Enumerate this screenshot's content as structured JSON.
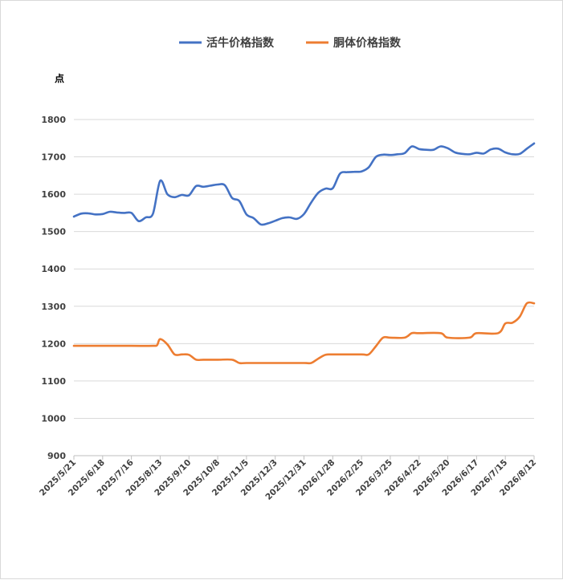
{
  "chart_data": {
    "type": "line",
    "y_unit": "点",
    "ylim": [
      900,
      1800
    ],
    "y_ticks": [
      900,
      1000,
      1100,
      1200,
      1300,
      1400,
      1500,
      1600,
      1700,
      1800
    ],
    "grid": true,
    "legend_position": "top-center",
    "x_start": "2025/5/21",
    "x_end": "2026/8/12",
    "x_ticks": [
      "2025/5/21",
      "2025/6/18",
      "2025/7/16",
      "2025/8/13",
      "2025/9/10",
      "2025/10/8",
      "2025/11/5",
      "2025/12/3",
      "2025/12/31",
      "2026/1/28",
      "2026/2/25",
      "2026/3/25",
      "2026/4/22",
      "2026/5/20",
      "2026/6/17",
      "2026/7/15",
      "2026/8/12"
    ],
    "series": [
      {
        "name": "活牛价格指数",
        "color": "#4472c4",
        "points": [
          [
            "2025/5/21",
            1540
          ],
          [
            "2025/5/28",
            1548
          ],
          [
            "2025/6/4",
            1549
          ],
          [
            "2025/6/11",
            1546
          ],
          [
            "2025/6/18",
            1547
          ],
          [
            "2025/6/25",
            1553
          ],
          [
            "2025/7/2",
            1551
          ],
          [
            "2025/7/9",
            1550
          ],
          [
            "2025/7/16",
            1550
          ],
          [
            "2025/7/23",
            1528
          ],
          [
            "2025/7/30",
            1538
          ],
          [
            "2025/8/6",
            1548
          ],
          [
            "2025/8/13",
            1636
          ],
          [
            "2025/8/20",
            1600
          ],
          [
            "2025/8/27",
            1592
          ],
          [
            "2025/9/3",
            1598
          ],
          [
            "2025/9/10",
            1597
          ],
          [
            "2025/9/17",
            1622
          ],
          [
            "2025/9/24",
            1620
          ],
          [
            "2025/10/1",
            1623
          ],
          [
            "2025/10/8",
            1626
          ],
          [
            "2025/10/15",
            1624
          ],
          [
            "2025/10/22",
            1590
          ],
          [
            "2025/10/29",
            1582
          ],
          [
            "2025/11/5",
            1546
          ],
          [
            "2025/11/12",
            1536
          ],
          [
            "2025/11/19",
            1519
          ],
          [
            "2025/11/26",
            1522
          ],
          [
            "2025/12/3",
            1529
          ],
          [
            "2025/12/10",
            1536
          ],
          [
            "2025/12/17",
            1538
          ],
          [
            "2025/12/24",
            1534
          ],
          [
            "2025/12/31",
            1547
          ],
          [
            "2026/1/7",
            1578
          ],
          [
            "2026/1/14",
            1604
          ],
          [
            "2026/1/21",
            1615
          ],
          [
            "2026/1/28",
            1616
          ],
          [
            "2026/2/4",
            1655
          ],
          [
            "2026/2/11",
            1659
          ],
          [
            "2026/2/18",
            1660
          ],
          [
            "2026/2/25",
            1661
          ],
          [
            "2026/3/4",
            1672
          ],
          [
            "2026/3/11",
            1700
          ],
          [
            "2026/3/18",
            1706
          ],
          [
            "2026/3/25",
            1705
          ],
          [
            "2026/4/1",
            1707
          ],
          [
            "2026/4/8",
            1710
          ],
          [
            "2026/4/15",
            1728
          ],
          [
            "2026/4/22",
            1721
          ],
          [
            "2026/4/29",
            1719
          ],
          [
            "2026/5/6",
            1719
          ],
          [
            "2026/5/13",
            1728
          ],
          [
            "2026/5/20",
            1723
          ],
          [
            "2026/5/27",
            1712
          ],
          [
            "2026/6/3",
            1708
          ],
          [
            "2026/6/10",
            1707
          ],
          [
            "2026/6/17",
            1711
          ],
          [
            "2026/6/24",
            1709
          ],
          [
            "2026/7/1",
            1720
          ],
          [
            "2026/7/8",
            1722
          ],
          [
            "2026/7/15",
            1712
          ],
          [
            "2026/7/22",
            1707
          ],
          [
            "2026/7/29",
            1708
          ],
          [
            "2026/8/5",
            1722
          ],
          [
            "2026/8/12",
            1736
          ]
        ]
      },
      {
        "name": "胴体价格指数",
        "color": "#ed7d31",
        "points": [
          [
            "2025/5/21",
            1194
          ],
          [
            "2025/6/18",
            1194
          ],
          [
            "2025/7/16",
            1194
          ],
          [
            "2025/8/6",
            1194
          ],
          [
            "2025/8/10",
            1196
          ],
          [
            "2025/8/13",
            1212
          ],
          [
            "2025/8/20",
            1198
          ],
          [
            "2025/8/27",
            1171
          ],
          [
            "2025/9/3",
            1171
          ],
          [
            "2025/9/10",
            1170
          ],
          [
            "2025/9/17",
            1157
          ],
          [
            "2025/9/24",
            1157
          ],
          [
            "2025/10/8",
            1157
          ],
          [
            "2025/10/22",
            1157
          ],
          [
            "2025/10/29",
            1148
          ],
          [
            "2025/11/5",
            1148
          ],
          [
            "2025/12/3",
            1148
          ],
          [
            "2025/12/31",
            1148
          ],
          [
            "2026/1/7",
            1148
          ],
          [
            "2026/1/14",
            1160
          ],
          [
            "2026/1/21",
            1170
          ],
          [
            "2026/1/28",
            1171
          ],
          [
            "2026/2/25",
            1171
          ],
          [
            "2026/3/4",
            1171
          ],
          [
            "2026/3/11",
            1193
          ],
          [
            "2026/3/18",
            1216
          ],
          [
            "2026/3/25",
            1216
          ],
          [
            "2026/4/8",
            1216
          ],
          [
            "2026/4/15",
            1228
          ],
          [
            "2026/4/22",
            1228
          ],
          [
            "2026/5/13",
            1228
          ],
          [
            "2026/5/20",
            1216
          ],
          [
            "2026/6/10",
            1216
          ],
          [
            "2026/6/17",
            1228
          ],
          [
            "2026/7/8",
            1228
          ],
          [
            "2026/7/15",
            1254
          ],
          [
            "2026/7/22",
            1256
          ],
          [
            "2026/7/29",
            1272
          ],
          [
            "2026/8/5",
            1308
          ],
          [
            "2026/8/12",
            1308
          ]
        ]
      }
    ]
  }
}
